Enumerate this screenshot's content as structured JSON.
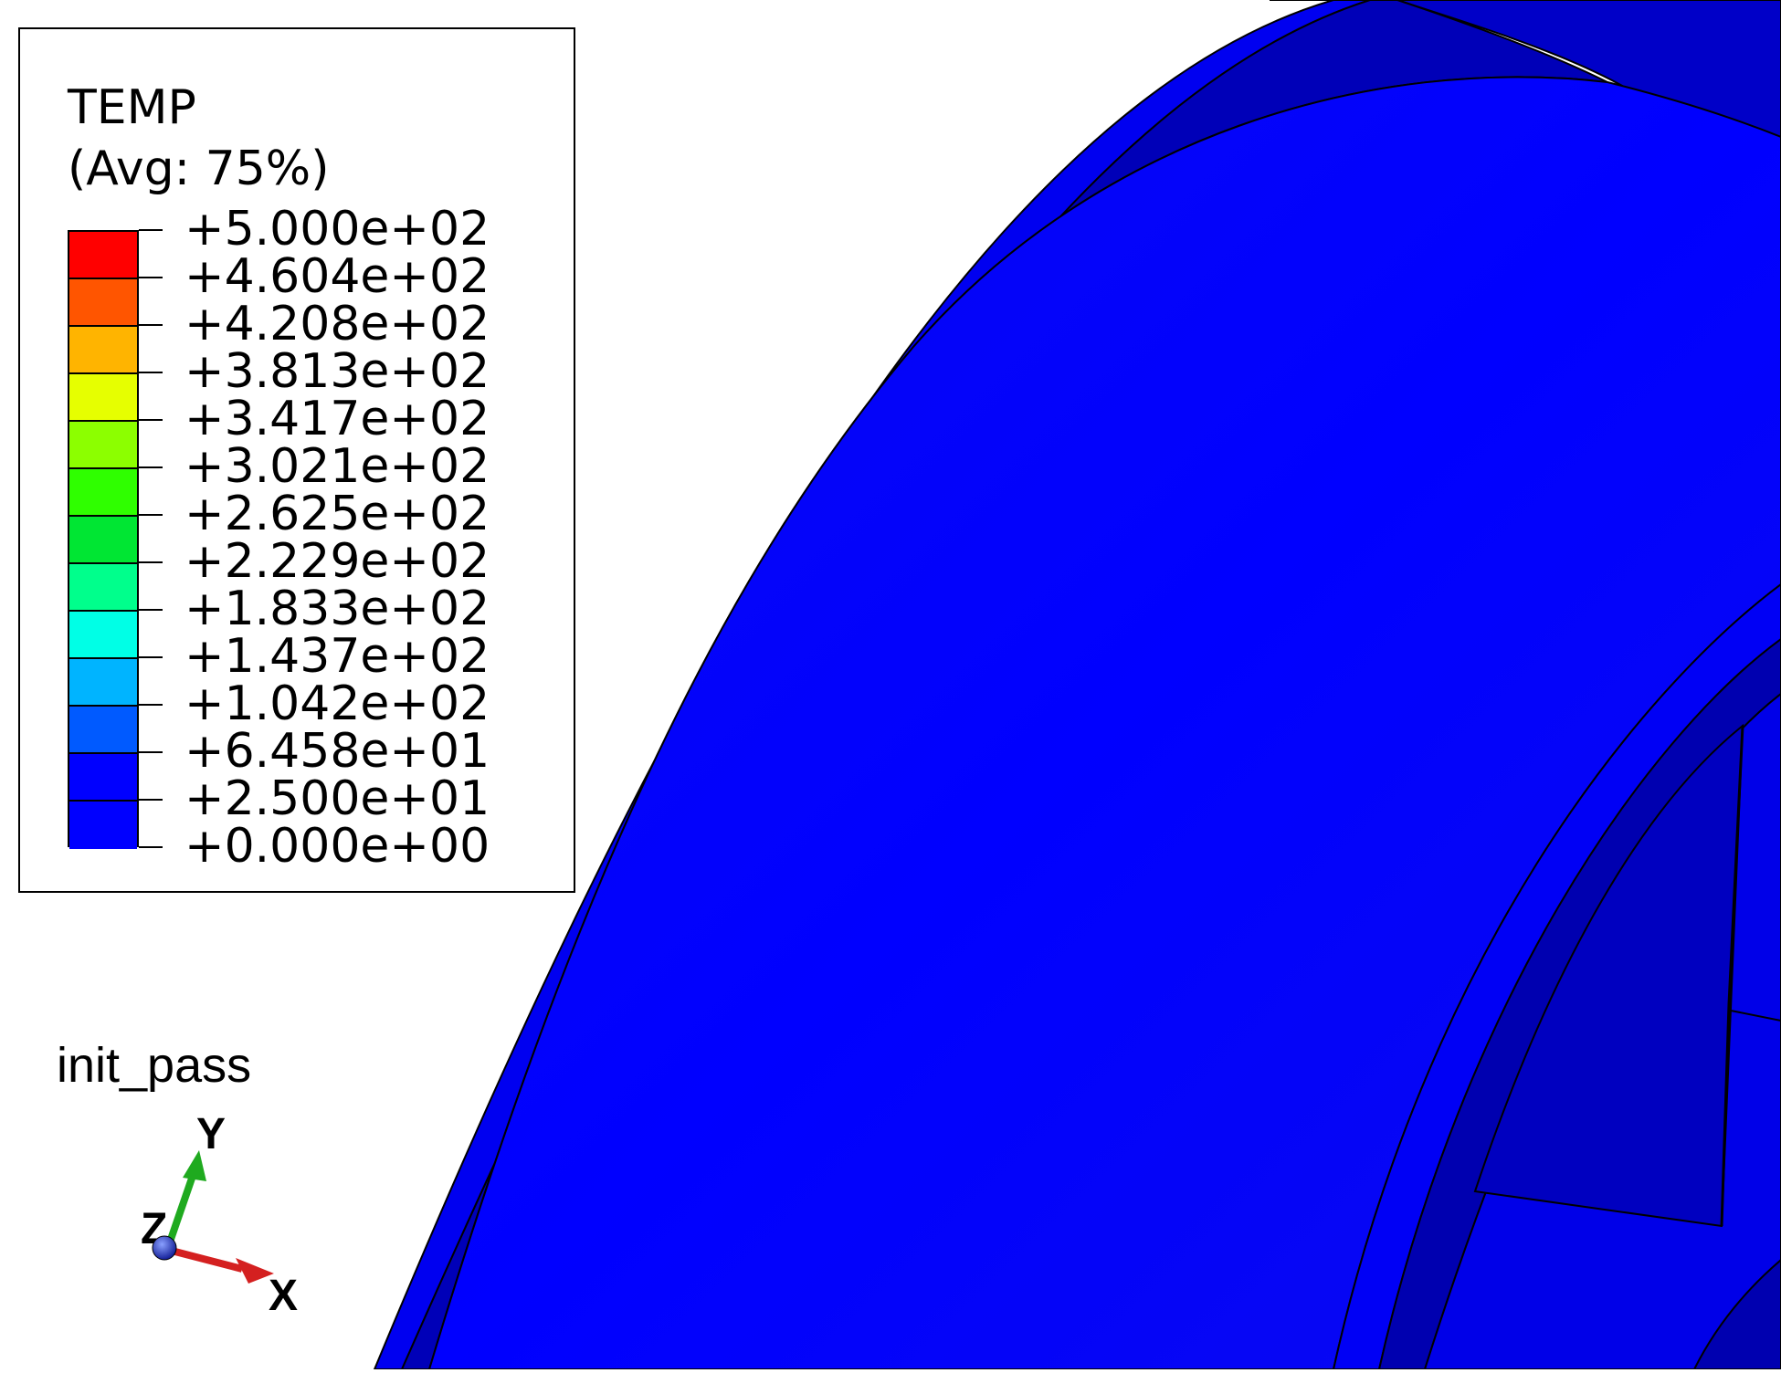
{
  "legend": {
    "title": "TEMP",
    "subtitle": "(Avg: 75%)",
    "tick_labels": [
      "+5.000e+02",
      "+4.604e+02",
      "+4.208e+02",
      "+3.813e+02",
      "+3.417e+02",
      "+3.021e+02",
      "+2.625e+02",
      "+2.229e+02",
      "+1.833e+02",
      "+1.437e+02",
      "+1.042e+02",
      "+6.458e+01",
      "+2.500e+01",
      "+0.000e+00"
    ],
    "band_colors": [
      "#ff0000",
      "#ff5500",
      "#ffb400",
      "#e6ff00",
      "#8cff00",
      "#2fff00",
      "#00e633",
      "#00ff8c",
      "#00ffe6",
      "#00b4ff",
      "#005aff",
      "#0000ff",
      "#0000ff"
    ]
  },
  "step_label": "init_pass",
  "triad": {
    "x_label": "X",
    "y_label": "Y",
    "z_label": "Z",
    "x_color": "#d42020",
    "y_color": "#1faa1f",
    "z_color": "#1a2aa8"
  },
  "model": {
    "contour_color": "#0000ff",
    "edge_color": "#000000"
  }
}
